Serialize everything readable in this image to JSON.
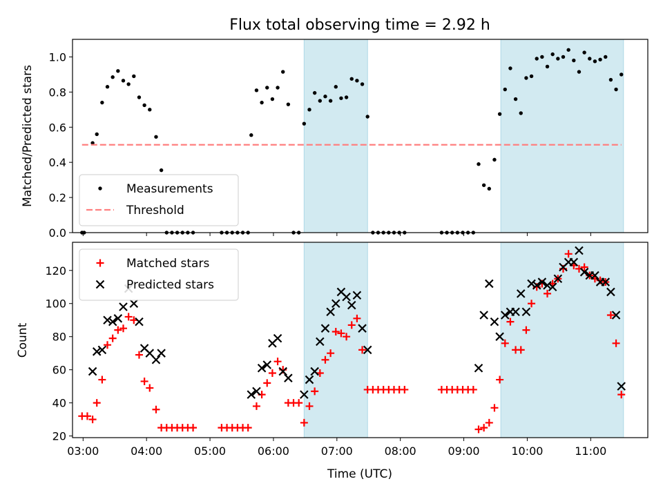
{
  "chart_data": [
    {
      "type": "scatter",
      "title": "Flux total observing time = 2.92 h",
      "xlabel": "",
      "ylabel": "Matched/Predicted stars",
      "xlim": [
        "02:50",
        "11:54"
      ],
      "ylim": [
        0,
        1.1
      ],
      "yticks": [
        "0.0",
        "0.2",
        "0.4",
        "0.6",
        "0.8",
        "1.0"
      ],
      "legend_position": "lower-left",
      "shaded_intervals": [
        [
          "06:29",
          "07:29"
        ],
        [
          "09:35",
          "11:31"
        ]
      ],
      "shade_color": "#add8e6",
      "series": [
        {
          "name": "Measurements",
          "marker": "dot",
          "color": "#000000",
          "points": [
            [
              "02:59",
              0.0
            ],
            [
              "03:01",
              0.0
            ],
            [
              "03:09",
              0.51
            ],
            [
              "03:13",
              0.56
            ],
            [
              "03:18",
              0.74
            ],
            [
              "03:23",
              0.83
            ],
            [
              "03:28",
              0.885
            ],
            [
              "03:33",
              0.92
            ],
            [
              "03:38",
              0.865
            ],
            [
              "03:43",
              0.845
            ],
            [
              "03:48",
              0.89
            ],
            [
              "03:53",
              0.77
            ],
            [
              "03:58",
              0.725
            ],
            [
              "04:03",
              0.7
            ],
            [
              "04:09",
              0.545
            ],
            [
              "04:14",
              0.355
            ],
            [
              "04:19",
              0.0
            ],
            [
              "04:24",
              0.0
            ],
            [
              "04:29",
              0.0
            ],
            [
              "04:34",
              0.0
            ],
            [
              "04:39",
              0.0
            ],
            [
              "04:44",
              0.0
            ],
            [
              "05:11",
              0.0
            ],
            [
              "05:16",
              0.0
            ],
            [
              "05:21",
              0.0
            ],
            [
              "05:26",
              0.0
            ],
            [
              "05:31",
              0.0
            ],
            [
              "05:36",
              0.0
            ],
            [
              "05:39",
              0.555
            ],
            [
              "05:44",
              0.81
            ],
            [
              "05:49",
              0.74
            ],
            [
              "05:54",
              0.825
            ],
            [
              "05:59",
              0.76
            ],
            [
              "06:04",
              0.825
            ],
            [
              "06:09",
              0.915
            ],
            [
              "06:14",
              0.73
            ],
            [
              "06:19",
              0.0
            ],
            [
              "06:24",
              0.0
            ],
            [
              "06:29",
              0.62
            ],
            [
              "06:34",
              0.7
            ],
            [
              "06:39",
              0.795
            ],
            [
              "06:44",
              0.75
            ],
            [
              "06:49",
              0.775
            ],
            [
              "06:54",
              0.75
            ],
            [
              "06:59",
              0.83
            ],
            [
              "07:04",
              0.765
            ],
            [
              "07:09",
              0.77
            ],
            [
              "07:14",
              0.875
            ],
            [
              "07:19",
              0.865
            ],
            [
              "07:24",
              0.845
            ],
            [
              "07:29",
              0.66
            ],
            [
              "07:34",
              0.0
            ],
            [
              "07:39",
              0.0
            ],
            [
              "07:44",
              0.0
            ],
            [
              "07:49",
              0.0
            ],
            [
              "07:54",
              0.0
            ],
            [
              "07:59",
              0.0
            ],
            [
              "08:04",
              0.0
            ],
            [
              "08:39",
              0.0
            ],
            [
              "08:44",
              0.0
            ],
            [
              "08:49",
              0.0
            ],
            [
              "08:54",
              0.0
            ],
            [
              "08:59",
              0.0
            ],
            [
              "09:04",
              0.0
            ],
            [
              "09:09",
              0.0
            ],
            [
              "09:14",
              0.39
            ],
            [
              "09:19",
              0.27
            ],
            [
              "09:24",
              0.25
            ],
            [
              "09:29",
              0.415
            ],
            [
              "09:34",
              0.675
            ],
            [
              "09:39",
              0.815
            ],
            [
              "09:44",
              0.935
            ],
            [
              "09:49",
              0.76
            ],
            [
              "09:54",
              0.68
            ],
            [
              "09:59",
              0.88
            ],
            [
              "10:04",
              0.89
            ],
            [
              "10:09",
              0.99
            ],
            [
              "10:14",
              1.0
            ],
            [
              "10:19",
              0.945
            ],
            [
              "10:24",
              1.015
            ],
            [
              "10:29",
              0.99
            ],
            [
              "10:34",
              1.0
            ],
            [
              "10:39",
              1.04
            ],
            [
              "10:44",
              0.98
            ],
            [
              "10:49",
              0.915
            ],
            [
              "10:54",
              1.025
            ],
            [
              "10:59",
              0.99
            ],
            [
              "11:04",
              0.975
            ],
            [
              "11:09",
              0.985
            ],
            [
              "11:14",
              1.0
            ],
            [
              "11:19",
              0.87
            ],
            [
              "11:24",
              0.815
            ],
            [
              "11:29",
              0.9
            ]
          ]
        },
        {
          "name": "Threshold",
          "marker": "dashed-line",
          "color": "#ff7f7f",
          "points": [
            [
              "02:59",
              0.5
            ],
            [
              "11:29",
              0.5
            ]
          ]
        }
      ]
    },
    {
      "type": "scatter",
      "title": "",
      "xlabel": "Time (UTC)",
      "ylabel": "Count",
      "xlim": [
        "02:50",
        "11:54"
      ],
      "ylim": [
        19,
        137
      ],
      "yticks": [
        "20",
        "40",
        "60",
        "80",
        "100",
        "120"
      ],
      "xticks": [
        "03:00",
        "04:00",
        "05:00",
        "06:00",
        "07:00",
        "08:00",
        "09:00",
        "10:00",
        "11:00"
      ],
      "legend_position": "upper-left",
      "shaded_intervals": [
        [
          "06:29",
          "07:29"
        ],
        [
          "09:35",
          "11:31"
        ]
      ],
      "shade_color": "#add8e6",
      "series": [
        {
          "name": "Matched stars",
          "marker": "plus",
          "color": "#ff0000",
          "points": [
            [
              "02:59",
              32
            ],
            [
              "03:04",
              32
            ],
            [
              "03:09",
              30
            ],
            [
              "03:13",
              40
            ],
            [
              "03:18",
              54
            ],
            [
              "03:23",
              75
            ],
            [
              "03:28",
              79
            ],
            [
              "03:33",
              84
            ],
            [
              "03:38",
              85
            ],
            [
              "03:43",
              92
            ],
            [
              "03:48",
              90
            ],
            [
              "03:53",
              69
            ],
            [
              "03:58",
              53
            ],
            [
              "04:03",
              49
            ],
            [
              "04:09",
              36
            ],
            [
              "04:14",
              25
            ],
            [
              "04:19",
              25
            ],
            [
              "04:24",
              25
            ],
            [
              "04:29",
              25
            ],
            [
              "04:34",
              25
            ],
            [
              "04:39",
              25
            ],
            [
              "04:44",
              25
            ],
            [
              "05:11",
              25
            ],
            [
              "05:16",
              25
            ],
            [
              "05:21",
              25
            ],
            [
              "05:26",
              25
            ],
            [
              "05:31",
              25
            ],
            [
              "05:36",
              25
            ],
            [
              "05:44",
              38
            ],
            [
              "05:49",
              45
            ],
            [
              "05:54",
              52
            ],
            [
              "05:59",
              58
            ],
            [
              "06:04",
              65
            ],
            [
              "06:09",
              60
            ],
            [
              "06:14",
              40
            ],
            [
              "06:19",
              40
            ],
            [
              "06:24",
              40
            ],
            [
              "06:29",
              28
            ],
            [
              "06:34",
              38
            ],
            [
              "06:39",
              47
            ],
            [
              "06:44",
              58
            ],
            [
              "06:49",
              66
            ],
            [
              "06:54",
              70
            ],
            [
              "06:59",
              83
            ],
            [
              "07:04",
              82
            ],
            [
              "07:09",
              80
            ],
            [
              "07:14",
              87
            ],
            [
              "07:19",
              91
            ],
            [
              "07:24",
              72
            ],
            [
              "07:29",
              48
            ],
            [
              "07:34",
              48
            ],
            [
              "07:39",
              48
            ],
            [
              "07:44",
              48
            ],
            [
              "07:49",
              48
            ],
            [
              "07:54",
              48
            ],
            [
              "07:59",
              48
            ],
            [
              "08:04",
              48
            ],
            [
              "08:39",
              48
            ],
            [
              "08:44",
              48
            ],
            [
              "08:49",
              48
            ],
            [
              "08:54",
              48
            ],
            [
              "08:59",
              48
            ],
            [
              "09:04",
              48
            ],
            [
              "09:09",
              48
            ],
            [
              "09:14",
              24
            ],
            [
              "09:19",
              25
            ],
            [
              "09:24",
              28
            ],
            [
              "09:29",
              37
            ],
            [
              "09:34",
              54
            ],
            [
              "09:39",
              76
            ],
            [
              "09:44",
              89
            ],
            [
              "09:49",
              72
            ],
            [
              "09:54",
              72
            ],
            [
              "09:59",
              84
            ],
            [
              "10:04",
              100
            ],
            [
              "10:09",
              110
            ],
            [
              "10:14",
              112
            ],
            [
              "10:19",
              106
            ],
            [
              "10:24",
              112
            ],
            [
              "10:29",
              115
            ],
            [
              "10:34",
              121
            ],
            [
              "10:39",
              130
            ],
            [
              "10:44",
              123
            ],
            [
              "10:49",
              121
            ],
            [
              "10:54",
              122
            ],
            [
              "10:59",
              117
            ],
            [
              "11:04",
              115
            ],
            [
              "11:09",
              114
            ],
            [
              "11:14",
              113
            ],
            [
              "11:19",
              93
            ],
            [
              "11:24",
              76
            ],
            [
              "11:29",
              45
            ]
          ]
        },
        {
          "name": "Predicted stars",
          "marker": "x",
          "color": "#000000",
          "points": [
            [
              "03:09",
              59
            ],
            [
              "03:13",
              71
            ],
            [
              "03:18",
              72
            ],
            [
              "03:23",
              90
            ],
            [
              "03:28",
              89
            ],
            [
              "03:33",
              91
            ],
            [
              "03:38",
              98
            ],
            [
              "03:43",
              109
            ],
            [
              "03:48",
              100
            ],
            [
              "03:53",
              89
            ],
            [
              "03:58",
              73
            ],
            [
              "04:03",
              70
            ],
            [
              "04:09",
              66
            ],
            [
              "04:14",
              70
            ],
            [
              "05:39",
              45
            ],
            [
              "05:44",
              47
            ],
            [
              "05:49",
              61
            ],
            [
              "05:54",
              63
            ],
            [
              "05:59",
              76
            ],
            [
              "06:04",
              79
            ],
            [
              "06:09",
              59
            ],
            [
              "06:14",
              55
            ],
            [
              "06:29",
              45
            ],
            [
              "06:34",
              54
            ],
            [
              "06:39",
              59
            ],
            [
              "06:44",
              77
            ],
            [
              "06:49",
              85
            ],
            [
              "06:54",
              95
            ],
            [
              "06:59",
              100
            ],
            [
              "07:04",
              107
            ],
            [
              "07:09",
              104
            ],
            [
              "07:14",
              99
            ],
            [
              "07:19",
              105
            ],
            [
              "07:24",
              85
            ],
            [
              "07:29",
              72
            ],
            [
              "09:14",
              61
            ],
            [
              "09:19",
              93
            ],
            [
              "09:24",
              112
            ],
            [
              "09:29",
              89
            ],
            [
              "09:34",
              80
            ],
            [
              "09:39",
              93
            ],
            [
              "09:44",
              95
            ],
            [
              "09:49",
              95
            ],
            [
              "09:54",
              106
            ],
            [
              "09:59",
              95
            ],
            [
              "10:04",
              112
            ],
            [
              "10:09",
              111
            ],
            [
              "10:14",
              113
            ],
            [
              "10:19",
              111
            ],
            [
              "10:24",
              110
            ],
            [
              "10:29",
              115
            ],
            [
              "10:34",
              122
            ],
            [
              "10:39",
              125
            ],
            [
              "10:44",
              125
            ],
            [
              "10:49",
              132
            ],
            [
              "10:54",
              119
            ],
            [
              "10:59",
              117
            ],
            [
              "11:04",
              117
            ],
            [
              "11:09",
              113
            ],
            [
              "11:14",
              113
            ],
            [
              "11:19",
              107
            ],
            [
              "11:24",
              93
            ],
            [
              "11:29",
              50
            ]
          ]
        }
      ]
    }
  ]
}
